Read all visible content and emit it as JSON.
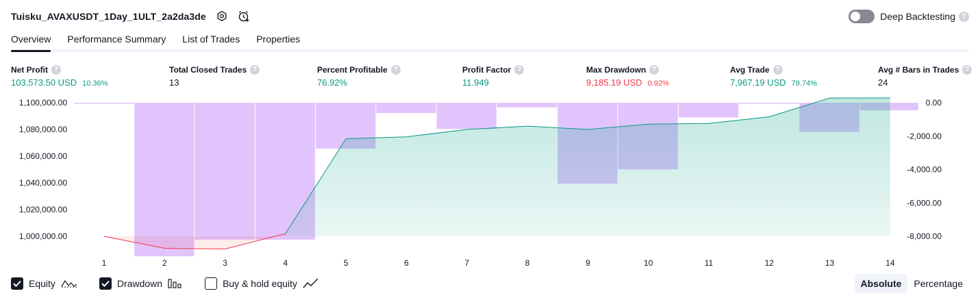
{
  "header": {
    "title": "Tuisku_AVAXUSDT_1Day_1ULT_2a2da3de",
    "deep_backtesting_label": "Deep Backtesting",
    "help_glyph": "?"
  },
  "tabs": [
    {
      "label": "Overview",
      "active": true
    },
    {
      "label": "Performance Summary",
      "active": false
    },
    {
      "label": "List of Trades",
      "active": false
    },
    {
      "label": "Properties",
      "active": false
    }
  ],
  "stats": [
    {
      "label": "Net Profit",
      "value": "103,573.50 USD",
      "pct": "10.36%",
      "color": "#089981"
    },
    {
      "label": "Total Closed Trades",
      "value": "13",
      "pct": "",
      "color": "#131722"
    },
    {
      "label": "Percent Profitable",
      "value": "76.92%",
      "pct": "",
      "color": "#089981"
    },
    {
      "label": "Profit Factor",
      "value": "11.949",
      "pct": "",
      "color": "#089981"
    },
    {
      "label": "Max Drawdown",
      "value": "9,185.19 USD",
      "pct": "0.92%",
      "color": "#f23645"
    },
    {
      "label": "Avg Trade",
      "value": "7,967.19 USD",
      "pct": "79.74%",
      "color": "#089981"
    },
    {
      "label": "Avg # Bars in Trades",
      "value": "24",
      "pct": "",
      "color": "#131722"
    }
  ],
  "chart_data": {
    "type": "line",
    "x": [
      1,
      2,
      3,
      4,
      5,
      6,
      7,
      8,
      9,
      10,
      11,
      12,
      13,
      14
    ],
    "series": [
      {
        "name": "Equity",
        "color": "#089981",
        "values": [
          1000000,
          991000,
          990500,
          1002000,
          1073000,
          1074500,
          1080000,
          1082500,
          1080000,
          1084000,
          1084500,
          1089500,
          1103500,
          1103600
        ]
      },
      {
        "name": "Drawdown",
        "color": "#e1c4fc",
        "values": [
          0,
          -9200,
          -8200,
          -8200,
          -2750,
          -620,
          -1570,
          -280,
          -4850,
          -3990,
          -880,
          -10,
          -1750,
          -450
        ]
      }
    ],
    "y_left_ticks": [
      "1,100,000.00",
      "1,080,000.00",
      "1,060,000.00",
      "1,040,000.00",
      "1,020,000.00",
      "1,000,000.00"
    ],
    "y_left_range": [
      1000000,
      1100000
    ],
    "y_right_ticks": [
      "0.00",
      "-2,000.00",
      "-4,000.00",
      "-6,000.00",
      "-8,000.00"
    ],
    "y_right_range": [
      -8000,
      0
    ],
    "x_ticks": [
      "1",
      "2",
      "3",
      "4",
      "5",
      "6",
      "7",
      "8",
      "9",
      "10",
      "11",
      "12",
      "13",
      "14"
    ],
    "below_start_color": "#f23645"
  },
  "legend": [
    {
      "label": "Equity",
      "checked": true,
      "icon": "equity-line-icon"
    },
    {
      "label": "Drawdown",
      "checked": true,
      "icon": "drawdown-bars-icon"
    },
    {
      "label": "Buy & hold equity",
      "checked": false,
      "icon": "buy-hold-line-icon"
    }
  ],
  "scale_toggle": {
    "absolute": "Absolute",
    "percentage": "Percentage",
    "selected": "absolute"
  }
}
